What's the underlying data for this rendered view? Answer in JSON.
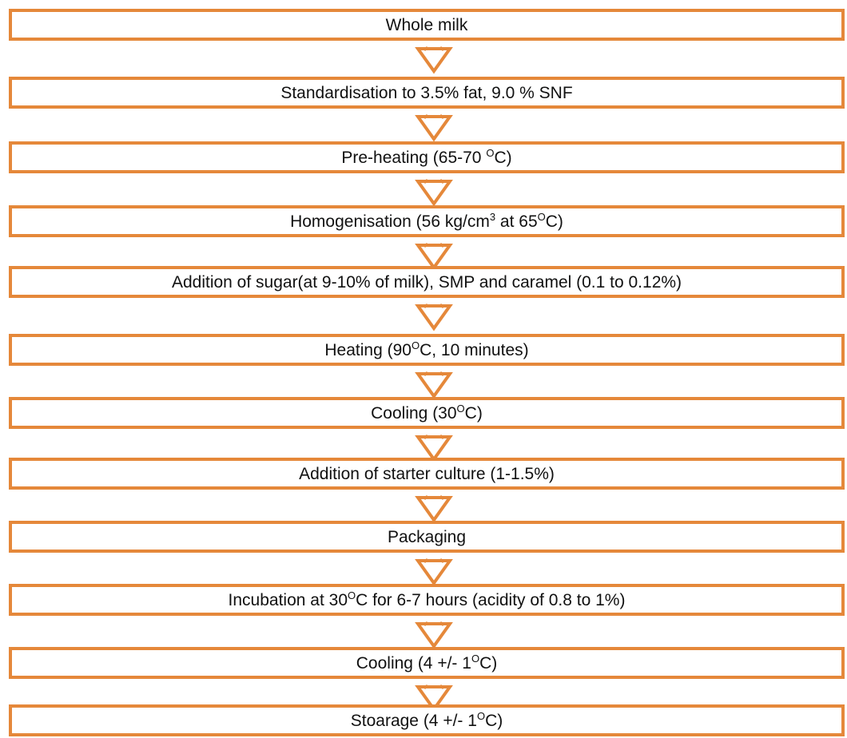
{
  "colors": {
    "box_border": "#e5883a",
    "arrow_stroke": "#e5883a",
    "text": "#111111",
    "background": "#ffffff"
  },
  "steps": [
    {
      "text": "Whole milk"
    },
    {
      "text": "Standardisation to 3.5% fat, 9.0 % SNF"
    },
    {
      "before": "Pre-heating (65-70 ",
      "sup": "O",
      "after": "C)"
    },
    {
      "before": "Homogenisation (56 kg/cm",
      "sup": "3",
      "middle": " at 65",
      "sup2": "O",
      "after": "C)"
    },
    {
      "text": "Addition of sugar(at 9-10% of milk), SMP and caramel (0.1 to 0.12%)"
    },
    {
      "before": "Heating (90",
      "sup": "O",
      "after": "C, 10 minutes)"
    },
    {
      "before": "Cooling (30",
      "sup": "O",
      "after": "C)"
    },
    {
      "text": "Addition of starter culture (1-1.5%)"
    },
    {
      "text": "Packaging"
    },
    {
      "before": "Incubation at 30",
      "sup": "O",
      "after": "C for 6-7 hours (acidity of 0.8 to 1%)"
    },
    {
      "before": "Cooling  (4 +/-  1",
      "sup": "O",
      "after": "C)"
    },
    {
      "before": "Stoarage  (4 +/-  1",
      "sup": "O",
      "after": "C)"
    }
  ],
  "connector": {
    "icon": "down-chevron-arrow-icon",
    "count": 11
  }
}
